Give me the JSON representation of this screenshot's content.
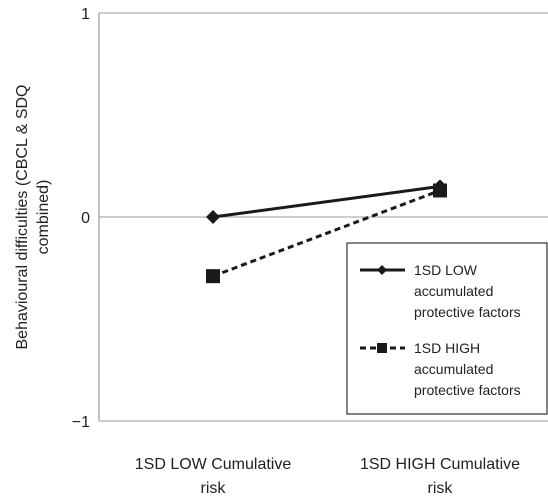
{
  "chart_data": {
    "type": "line",
    "title": "",
    "ylabel": "Behavioural difficulties (CBCL & SDQ combined)",
    "ylabel_lines": [
      "Behavioural difficulties (CBCL & SDQ",
      "combined)"
    ],
    "xlabel": "",
    "categories": [
      "1SD LOW Cumulative risk",
      "1SD HIGH Cumulative risk"
    ],
    "category_lines": [
      [
        "1SD LOW Cumulative",
        "risk"
      ],
      [
        "1SD HIGH Cumulative",
        "risk"
      ]
    ],
    "ylim": [
      -1,
      1
    ],
    "yticks": [
      -1,
      0,
      1
    ],
    "ytick_labels": [
      "−1",
      "0",
      "1"
    ],
    "grid": "horizontal",
    "legend_position": "bottom-right",
    "series": [
      {
        "name": "1SD LOW accumulated protective factors",
        "name_lines": [
          "1SD LOW",
          "accumulated",
          "protective factors"
        ],
        "values": [
          0.0,
          0.15
        ],
        "marker": "diamond",
        "line_style": "solid",
        "color": "#1a1a1a"
      },
      {
        "name": "1SD HIGH accumulated protective factors",
        "name_lines": [
          "1SD HIGH",
          "accumulated",
          "protective factors"
        ],
        "values": [
          -0.29,
          0.13
        ],
        "marker": "square",
        "line_style": "dashed",
        "color": "#1a1a1a"
      }
    ],
    "colors": {
      "gridline": "#b0b0b0",
      "axis": "#9a9a9a",
      "series": "#1a1a1a",
      "legend_border": "#333333"
    }
  }
}
